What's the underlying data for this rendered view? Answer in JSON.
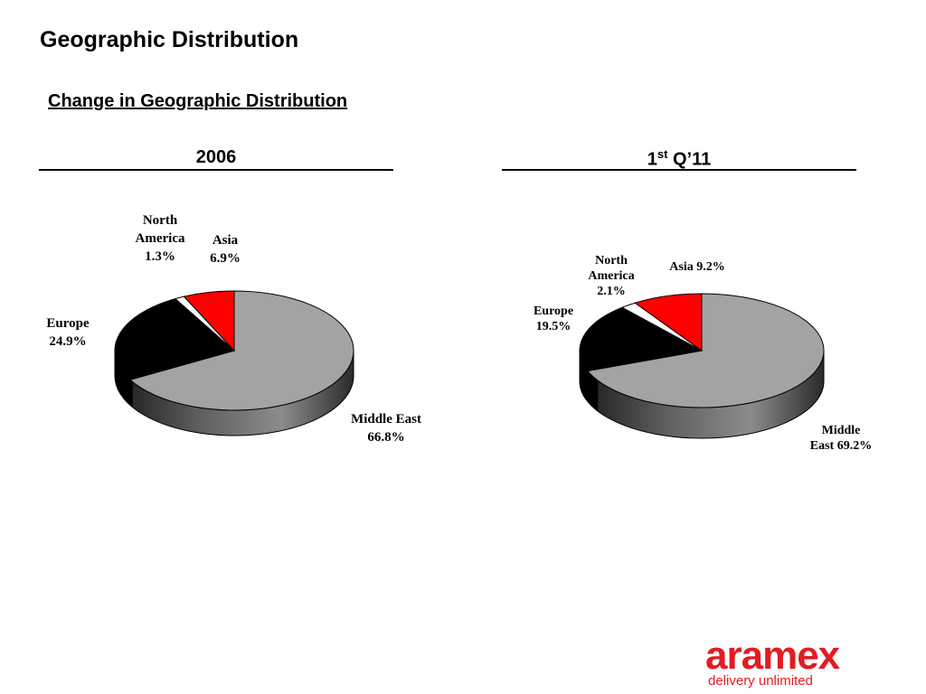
{
  "slide": {
    "title": "Geographic Distribution",
    "subtitle": "Change in Geographic Distribution"
  },
  "headings": {
    "left": "2006",
    "right_main": "1",
    "right_sup": "st",
    "right_rest": " Q’11"
  },
  "chart_data": [
    {
      "type": "pie",
      "title": "2006",
      "slices": [
        {
          "label": "Middle East",
          "value": 66.8,
          "color": "#a3a3a3",
          "label_lines": [
            "Middle East",
            "66.8%"
          ]
        },
        {
          "label": "Europe",
          "value": 24.9,
          "color": "#000000",
          "label_lines": [
            "Europe",
            "24.9%"
          ]
        },
        {
          "label": "North America",
          "value": 1.3,
          "color": "#ffffff",
          "label_lines": [
            "North",
            "America",
            "1.3%"
          ]
        },
        {
          "label": "Asia",
          "value": 6.9,
          "color": "#ff0000",
          "label_lines": [
            "Asia",
            "6.9%"
          ]
        }
      ]
    },
    {
      "type": "pie",
      "title": "1st Q’11",
      "slices": [
        {
          "label": "Middle East",
          "value": 69.2,
          "color": "#a3a3a3",
          "label_lines": [
            "Middle",
            "East 69.2%"
          ]
        },
        {
          "label": "Europe",
          "value": 19.5,
          "color": "#000000",
          "label_lines": [
            "Europe",
            "19.5%"
          ]
        },
        {
          "label": "North America",
          "value": 2.1,
          "color": "#ffffff",
          "label_lines": [
            "North",
            "America",
            "2.1%"
          ]
        },
        {
          "label": "Asia",
          "value": 9.2,
          "color": "#ff0000",
          "label_lines": [
            "Asia 9.2%"
          ]
        }
      ]
    }
  ],
  "logo": {
    "word": "aramex",
    "tagline": "delivery unlimited",
    "color": "#e31b23"
  }
}
